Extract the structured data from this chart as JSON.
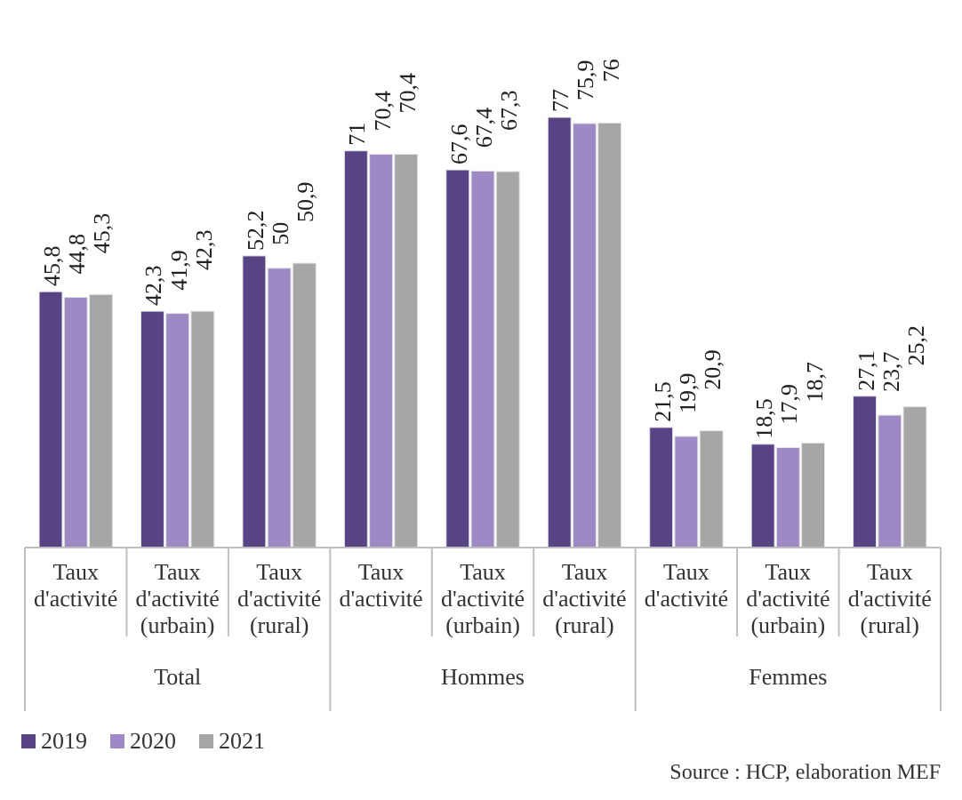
{
  "chart_data": {
    "type": "bar",
    "categories": [
      "Taux d'activité",
      "Taux d'activité (urbain)",
      "Taux d'activité (rural)",
      "Taux d'activité",
      "Taux d'activité (urbain)",
      "Taux d'activité (rural)",
      "Taux d'activité",
      "Taux d'activité (urbain)",
      "Taux d'activité (rural)"
    ],
    "series": [
      {
        "name": "2019",
        "color": "#574485",
        "values": [
          45.8,
          42.3,
          52.2,
          71,
          67.6,
          77,
          21.5,
          18.5,
          27.1
        ],
        "value_labels": [
          "45,8",
          "42,3",
          "52,2",
          "71",
          "67,6",
          "77",
          "21,5",
          "18,5",
          "27,1"
        ]
      },
      {
        "name": "2020",
        "color": "#9d8ac4",
        "values": [
          44.8,
          41.9,
          50,
          70.4,
          67.4,
          75.9,
          19.9,
          17.9,
          23.7
        ],
        "value_labels": [
          "44,8",
          "41,9",
          "50",
          "70,4",
          "67,4",
          "75,9",
          "19,9",
          "17,9",
          "23,7"
        ]
      },
      {
        "name": "2021",
        "color": "#a6a6a6",
        "values": [
          45.3,
          42.3,
          50.9,
          70.4,
          67.3,
          76,
          20.9,
          18.7,
          25.2
        ],
        "value_labels": [
          "45,3",
          "42,3",
          "50,9",
          "70,4",
          "67,3",
          "76",
          "20,9",
          "18,7",
          "25,2"
        ]
      }
    ],
    "annotations": [
      "Total",
      "Hommes",
      "Femmes",
      "Source : HCP, elaboration MEF"
    ],
    "legend": "bottom left"
  }
}
